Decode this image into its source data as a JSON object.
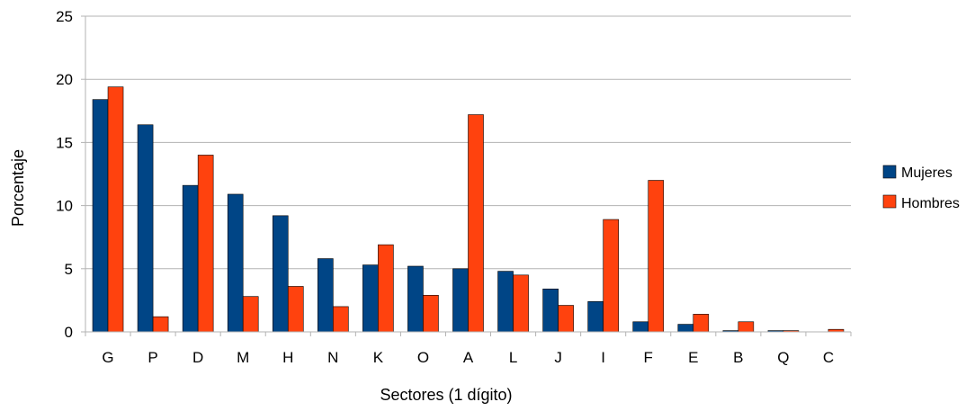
{
  "chart_data": {
    "type": "bar",
    "xlabel": "Sectores (1 dígito)",
    "ylabel": "Porcentaje",
    "ylim": [
      0,
      25
    ],
    "yticks": [
      0,
      5,
      10,
      15,
      20,
      25
    ],
    "grid": true,
    "legend_position": "right",
    "categories": [
      "G",
      "P",
      "D",
      "M",
      "H",
      "N",
      "K",
      "O",
      "A",
      "L",
      "J",
      "I",
      "F",
      "E",
      "B",
      "Q",
      "C"
    ],
    "series": [
      {
        "name": "Mujeres",
        "color": "#004586",
        "values": [
          18.4,
          16.4,
          11.6,
          10.9,
          9.2,
          5.8,
          5.3,
          5.2,
          5.0,
          4.8,
          3.4,
          2.4,
          0.8,
          0.6,
          0.1,
          0.1,
          0.0
        ]
      },
      {
        "name": "Hombres",
        "color": "#FF420E",
        "values": [
          19.4,
          1.2,
          14.0,
          2.8,
          3.6,
          2.0,
          6.9,
          2.9,
          17.2,
          4.5,
          2.1,
          8.9,
          12.0,
          1.4,
          0.8,
          0.1,
          0.2
        ]
      }
    ]
  }
}
